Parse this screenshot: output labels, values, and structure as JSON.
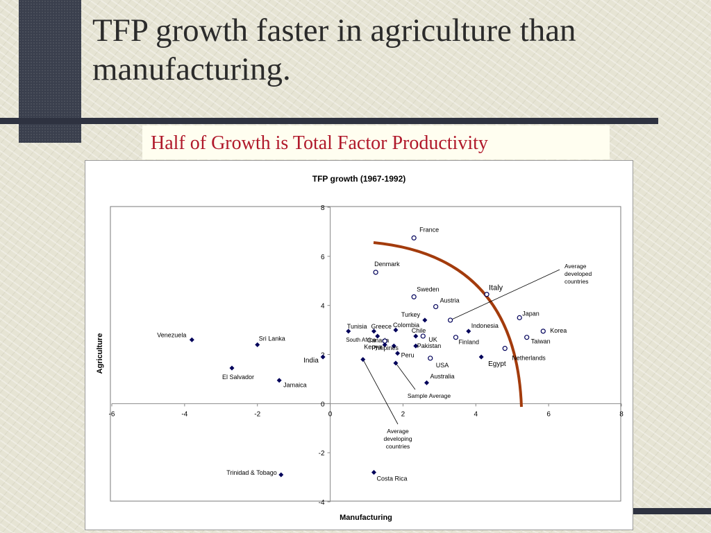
{
  "slide": {
    "title": "TFP growth faster in agriculture than manufacturing.",
    "subtitle": "Half of Growth is Total Factor Productivity"
  },
  "colors": {
    "developing": "#00005a",
    "developed": "#00005a",
    "arc": "#a33b0c",
    "subtitle": "#b0182a"
  },
  "chart_data": {
    "type": "scatter",
    "title": "TFP growth (1967-1992)",
    "xlabel": "Manufacturing",
    "ylabel": "Agriculture",
    "xlim": [
      -6,
      8
    ],
    "ylim": [
      -4,
      8
    ],
    "xticks": [
      -6,
      -4,
      -2,
      0,
      2,
      4,
      6,
      8
    ],
    "yticks": [
      -4,
      -2,
      0,
      2,
      4,
      6,
      8
    ],
    "grid": false,
    "series": [
      {
        "marker": "filled-diamond",
        "points": [
          {
            "label": "Venezuela",
            "x": -3.8,
            "y": 2.6
          },
          {
            "label": "Sri Lanka",
            "x": -2.0,
            "y": 2.4
          },
          {
            "label": "El Salvador",
            "x": -2.7,
            "y": 1.45
          },
          {
            "label": "Jamaica",
            "x": -1.4,
            "y": 0.95
          },
          {
            "label": "India",
            "x": -0.2,
            "y": 1.9
          },
          {
            "label": "Trinidad & Tobago",
            "x": -1.35,
            "y": -2.9
          },
          {
            "label": "Costa Rica",
            "x": 1.2,
            "y": -2.8
          },
          {
            "label": "Tunisia",
            "x": 0.5,
            "y": 2.95
          },
          {
            "label": "Greece",
            "x": 1.2,
            "y": 2.95
          },
          {
            "label": "Colombia",
            "x": 1.8,
            "y": 3.0
          },
          {
            "label": "Canada",
            "x": 1.3,
            "y": 2.75
          },
          {
            "label": "Turkey",
            "x": 2.6,
            "y": 3.4
          },
          {
            "label": "Chile",
            "x": 2.35,
            "y": 2.75
          },
          {
            "label": "Kenya",
            "x": 1.5,
            "y": 2.4
          },
          {
            "label": "Pakistan",
            "x": 2.35,
            "y": 2.35
          },
          {
            "label": "Philipines",
            "x": 1.75,
            "y": 2.35
          },
          {
            "label": "Peru",
            "x": 1.85,
            "y": 2.05
          },
          {
            "label": "Average developing countries",
            "x": 0.9,
            "y": 1.8
          },
          {
            "label": "Sample Average",
            "x": 1.8,
            "y": 1.65
          },
          {
            "label": "Australia",
            "x": 2.65,
            "y": 0.85
          },
          {
            "label": "Indonesia",
            "x": 3.8,
            "y": 2.95
          },
          {
            "label": "Egypt",
            "x": 4.15,
            "y": 1.9
          }
        ]
      },
      {
        "marker": "open-circle",
        "points": [
          {
            "label": "France",
            "x": 2.3,
            "y": 6.75
          },
          {
            "label": "Denmark",
            "x": 1.25,
            "y": 5.35
          },
          {
            "label": "Sweden",
            "x": 2.3,
            "y": 4.35
          },
          {
            "label": "Austria",
            "x": 2.9,
            "y": 3.95
          },
          {
            "label": "Italy",
            "x": 4.3,
            "y": 4.45
          },
          {
            "label": "Average developed countries",
            "x": 3.3,
            "y": 3.4
          },
          {
            "label": "Japan",
            "x": 5.2,
            "y": 3.5
          },
          {
            "label": "Korea",
            "x": 5.85,
            "y": 2.95
          },
          {
            "label": "Taiwan",
            "x": 5.4,
            "y": 2.7
          },
          {
            "label": "South Africa",
            "x": 1.5,
            "y": 2.55
          },
          {
            "label": "UK",
            "x": 2.55,
            "y": 2.75
          },
          {
            "label": "Finland",
            "x": 3.45,
            "y": 2.7
          },
          {
            "label": "USA",
            "x": 2.75,
            "y": 1.85
          },
          {
            "label": "Netherlands",
            "x": 4.8,
            "y": 2.25
          }
        ]
      }
    ],
    "annotations": [
      {
        "text": "Average developed countries",
        "lines": [
          "Average",
          "developed",
          "countries"
        ]
      },
      {
        "text": "Average developing countries",
        "lines": [
          "Average",
          "developing",
          "countries"
        ]
      },
      {
        "text": "Sample Average",
        "lines": [
          "Sample Average"
        ]
      }
    ]
  }
}
